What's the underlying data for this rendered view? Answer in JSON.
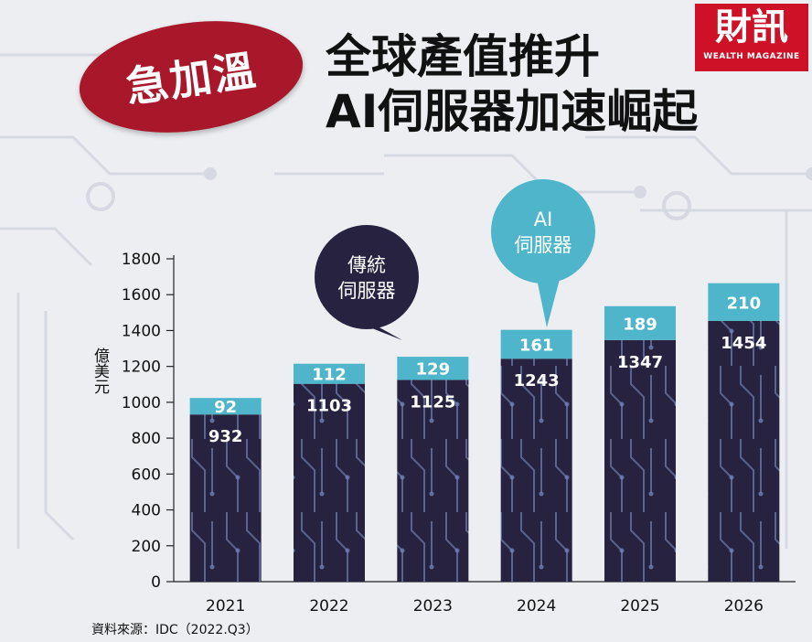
{
  "badge": {
    "text": "急加溫"
  },
  "title": {
    "line1": "全球產值推升",
    "line2": "AI伺服器加速崛起"
  },
  "logo": {
    "main": "財訊",
    "sub": "WEALTH MAGAZINE"
  },
  "source": "資料來源：IDC（2022.Q3）",
  "callouts": [
    {
      "lines": [
        "傳統",
        "伺服器"
      ],
      "color": "#27223f",
      "text_color": "#ffffff"
    },
    {
      "lines": [
        "AI",
        "伺服器"
      ],
      "color": "#4eb5cb",
      "text_color": "#ffffff"
    }
  ],
  "chart_data": {
    "type": "bar",
    "stacked": true,
    "categories": [
      "2021",
      "2022",
      "2023",
      "2024",
      "2025",
      "2026"
    ],
    "series": [
      {
        "name": "傳統伺服器",
        "values": [
          932,
          1103,
          1125,
          1243,
          1347,
          1454
        ],
        "color": "#27223f"
      },
      {
        "name": "AI伺服器",
        "values": [
          92,
          112,
          129,
          161,
          189,
          210
        ],
        "color": "#4eb5cb"
      }
    ],
    "ylabel": "億美元",
    "ylim": [
      0,
      1800
    ],
    "yticks": [
      0,
      200,
      400,
      600,
      800,
      1000,
      1200,
      1400,
      1600,
      1800
    ],
    "grid": false
  }
}
